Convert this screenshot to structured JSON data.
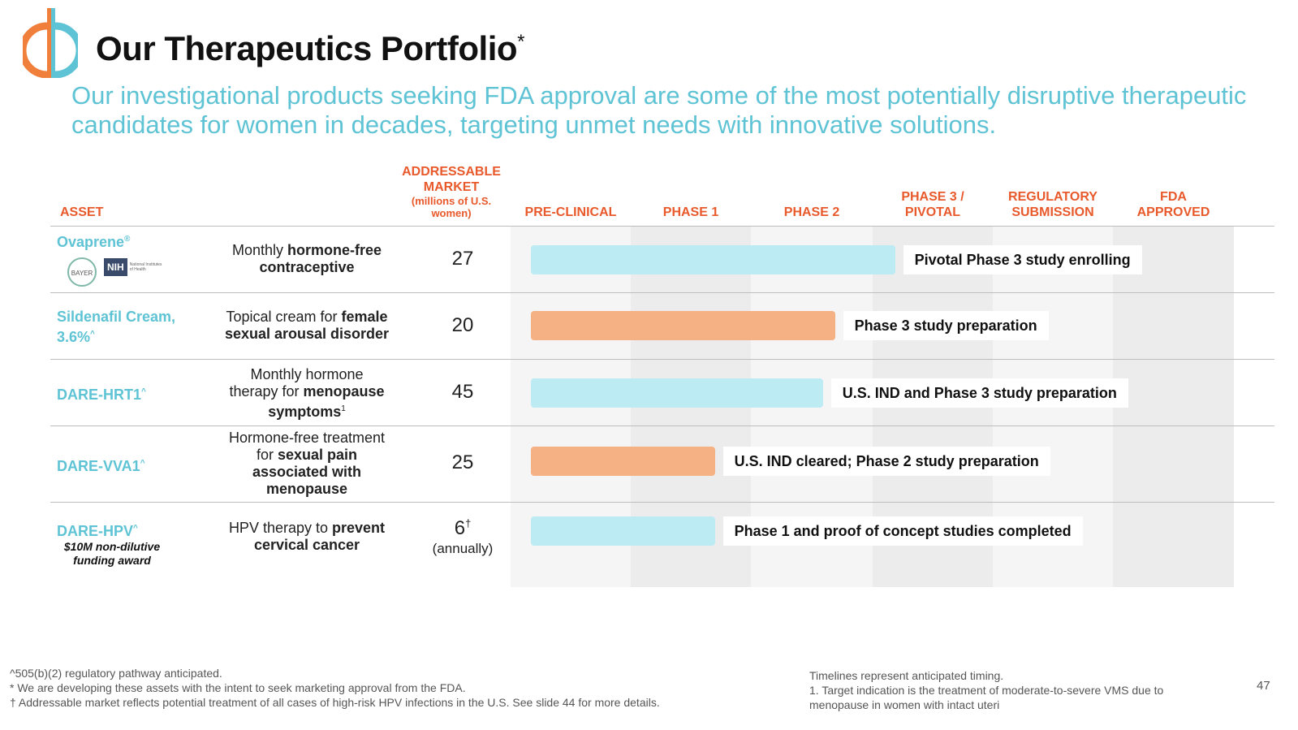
{
  "title": "Our Therapeutics Portfolio",
  "title_mark": "*",
  "subtitle": "Our investigational products seeking FDA approval are some of the most potentially disruptive therapeutic candidates for women in decades, targeting unmet needs with innovative solutions.",
  "colors": {
    "accent": "#5ec3d4",
    "header": "#e8592b",
    "bar_blue": "#bdebf3",
    "bar_orange": "#f5b083"
  },
  "headers": {
    "asset": "ASSET",
    "market_line1": "ADDRESSABLE",
    "market_line2": "MARKET",
    "market_sub1": "(millions of U.S.",
    "market_sub2": "women)",
    "preclinical": "PRE-CLINICAL",
    "phase1": "PHASE 1",
    "phase2": "PHASE 2",
    "phase3_line1": "PHASE 3 /",
    "phase3_line2": "PIVOTAL",
    "reg_line1": "REGULATORY",
    "reg_line2": "SUBMISSION",
    "fda_line1": "FDA",
    "fda_line2": "APPROVED"
  },
  "rows": [
    {
      "asset": "Ovaprene",
      "asset_mark": "®",
      "partners": [
        "BAYER",
        "NIH",
        "National Institutes of Health"
      ],
      "desc_plain1": "Monthly ",
      "desc_bold1": "hormone-free",
      "desc_plain2": "",
      "desc_bold2": "contraceptive",
      "market": "27",
      "market_note": "",
      "bar_color": "blue",
      "progress_stage": 3.2,
      "status": "Pivotal Phase 3 study enrolling"
    },
    {
      "asset": "Sildenafil Cream,",
      "asset_line2": "3.6%",
      "asset_mark": "^",
      "desc_plain1": "Topical cream for ",
      "desc_bold1": "female",
      "desc_plain2": "",
      "desc_bold2": "sexual arousal disorder",
      "market": "20",
      "market_note": "",
      "bar_color": "orange",
      "progress_stage": 2.7,
      "status": "Phase 3 study preparation"
    },
    {
      "asset": "DARE-HRT1",
      "asset_mark": "^",
      "desc_plain1": "Monthly hormone",
      "desc_plain2": "therapy for ",
      "desc_bold2": "menopause",
      "desc_bold3": "symptoms",
      "desc_note": "1",
      "market": "45",
      "market_note": "",
      "bar_color": "blue",
      "progress_stage": 2.6,
      "status": "U.S. IND and Phase 3 study preparation"
    },
    {
      "asset": "DARE-VVA1",
      "asset_mark": "^",
      "desc_plain1": "Hormone-free treatment",
      "desc_plain2": "for ",
      "desc_bold2": "sexual pain",
      "desc_bold3": "associated with",
      "desc_bold4": "menopause",
      "market": "25",
      "market_note": "",
      "bar_color": "orange",
      "progress_stage": 1.7,
      "status": "U.S. IND cleared; Phase 2 study preparation"
    },
    {
      "asset": "DARE-HPV",
      "asset_mark": "^",
      "asset_note1": "$10M non-dilutive",
      "asset_note2": "funding award",
      "desc_plain1": "HPV therapy to ",
      "desc_bold1": "prevent",
      "desc_bold2": "cervical cancer",
      "market": "6",
      "market_mark": "†",
      "market_note": "(annually)",
      "bar_color": "blue",
      "progress_stage": 1.7,
      "status": "Phase 1 and proof of concept studies completed"
    }
  ],
  "footnotes_left": [
    "^505(b)(2) regulatory pathway anticipated.",
    "* We are developing these assets with the intent to seek marketing approval from the FDA.",
    "† Addressable market reflects potential treatment of all cases of high-risk HPV infections in the U.S. See slide 44 for more details."
  ],
  "footnotes_right": [
    "Timelines represent anticipated timing.",
    "1. Target indication is the treatment of moderate-to-severe VMS due to",
    "menopause in women with intact uteri"
  ],
  "page_number": "47"
}
